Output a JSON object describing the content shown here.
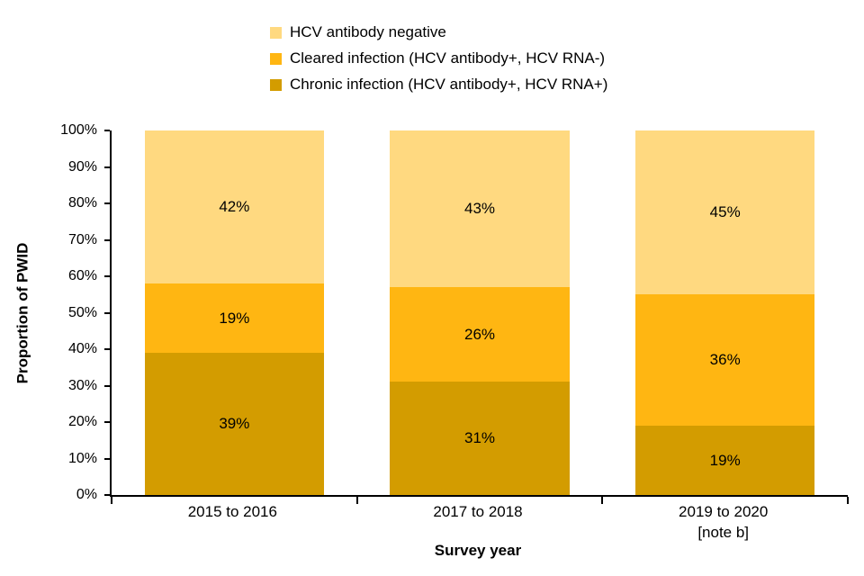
{
  "chart": {
    "background": "#FFFFFF",
    "axis_color": "#000000",
    "text_color": "#000000"
  },
  "chart_data": {
    "type": "bar",
    "stacked": true,
    "title": "",
    "xlabel": "Survey year",
    "ylabel": "Proportion of PWID",
    "ylim": [
      0,
      100
    ],
    "ytick_step": 10,
    "ytick_suffix": "%",
    "value_suffix": "%",
    "grid": false,
    "legend_position": "top",
    "categories": [
      {
        "label": "2015 to 2016",
        "note": ""
      },
      {
        "label": "2017 to 2018",
        "note": ""
      },
      {
        "label": "2019 to 2020",
        "note": "[note b]"
      }
    ],
    "series": [
      {
        "name": "Chronic infection (HCV antibody+, HCV RNA+)",
        "color": "#D39C00",
        "values": [
          39,
          31,
          19
        ]
      },
      {
        "name": "Cleared infection (HCV antibody+, HCV RNA-)",
        "color": "#FFB612",
        "values": [
          19,
          26,
          36
        ]
      },
      {
        "name": "HCV antibody negative",
        "color": "#FFD980",
        "values": [
          42,
          43,
          45
        ]
      }
    ]
  }
}
